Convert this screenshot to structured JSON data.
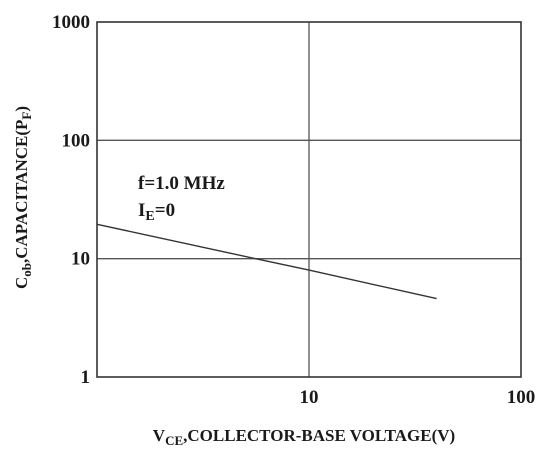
{
  "chart_data": {
    "type": "line",
    "x_scale": "log",
    "y_scale": "log",
    "xlim": [
      1,
      100
    ],
    "ylim": [
      1,
      1000
    ],
    "grid": true,
    "x_ticks": [
      "10",
      "100"
    ],
    "y_ticks": [
      "1",
      "10",
      "100",
      "1000"
    ],
    "xlabel": {
      "main": "V",
      "sub": "CE",
      "rest": ",COLLECTOR-BASE VOLTAGE(V)"
    },
    "ylabel": {
      "main": "C",
      "sub": "ob",
      "mid": ",CAPACITANCE(P",
      "sub2": "F",
      "end": ")"
    },
    "annotations": {
      "frequency": "f=1.0 MHz",
      "current_main": "I",
      "current_sub": "E",
      "current_rest": "=0"
    },
    "series": [
      {
        "x": [
          1,
          5.6,
          10,
          40
        ],
        "y": [
          19.5,
          10,
          8,
          4.6
        ]
      }
    ]
  }
}
